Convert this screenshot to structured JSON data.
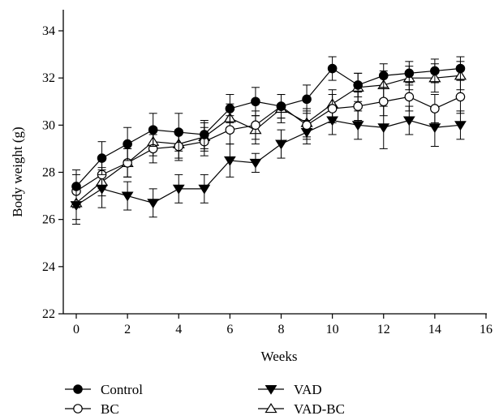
{
  "chart_data": {
    "type": "line",
    "title": "",
    "xlabel": "Weeks",
    "ylabel": "Body weight (g)",
    "xlim": [
      0,
      16
    ],
    "ylim": [
      22,
      35
    ],
    "xticks": [
      0,
      2,
      4,
      6,
      8,
      10,
      12,
      14,
      16
    ],
    "yticks": [
      22,
      24,
      26,
      28,
      30,
      32,
      34
    ],
    "grid": false,
    "legend_position": "bottom",
    "x": [
      0,
      1,
      2,
      3,
      4,
      5,
      6,
      7,
      8,
      9,
      10,
      11,
      12,
      13,
      14,
      15
    ],
    "series": [
      {
        "name": "Control",
        "marker": "filled-circle",
        "values": [
          27.4,
          28.6,
          29.2,
          29.8,
          29.7,
          29.6,
          30.7,
          31.0,
          30.8,
          31.1,
          32.4,
          31.7,
          32.1,
          32.2,
          32.3,
          32.4
        ],
        "errors": [
          0.7,
          0.7,
          0.7,
          0.7,
          0.8,
          0.6,
          0.6,
          0.6,
          0.5,
          0.6,
          0.5,
          0.5,
          0.5,
          0.5,
          0.5,
          0.5
        ]
      },
      {
        "name": "BC",
        "marker": "open-circle",
        "values": [
          27.2,
          27.9,
          28.4,
          29.0,
          29.1,
          29.3,
          29.8,
          30.0,
          30.8,
          30.0,
          30.7,
          30.8,
          31.0,
          31.2,
          30.7,
          31.2
        ],
        "errors": [
          0.7,
          0.6,
          0.6,
          0.6,
          0.6,
          0.6,
          0.6,
          0.6,
          0.5,
          0.6,
          0.6,
          0.6,
          0.6,
          0.6,
          0.6,
          0.7
        ]
      },
      {
        "name": "VAD",
        "marker": "filled-triangle-down",
        "values": [
          26.6,
          27.3,
          27.0,
          26.7,
          27.3,
          27.3,
          28.5,
          28.4,
          29.2,
          29.7,
          30.2,
          30.0,
          29.9,
          30.2,
          29.9,
          30.0
        ],
        "errors": [
          0.8,
          0.8,
          0.6,
          0.6,
          0.6,
          0.6,
          0.7,
          0.4,
          0.6,
          0.5,
          0.6,
          0.6,
          0.9,
          0.6,
          0.8,
          0.6
        ]
      },
      {
        "name": "VAD-BC",
        "marker": "open-triangle-up",
        "values": [
          26.7,
          27.6,
          28.4,
          29.3,
          29.2,
          29.5,
          30.3,
          29.8,
          30.7,
          30.1,
          30.9,
          31.6,
          31.7,
          32.0,
          32.0,
          32.1
        ],
        "errors": [
          0.7,
          0.6,
          0.6,
          0.6,
          0.6,
          0.6,
          0.6,
          0.6,
          0.6,
          0.6,
          0.6,
          0.6,
          0.6,
          0.5,
          0.6,
          0.6
        ]
      }
    ]
  }
}
